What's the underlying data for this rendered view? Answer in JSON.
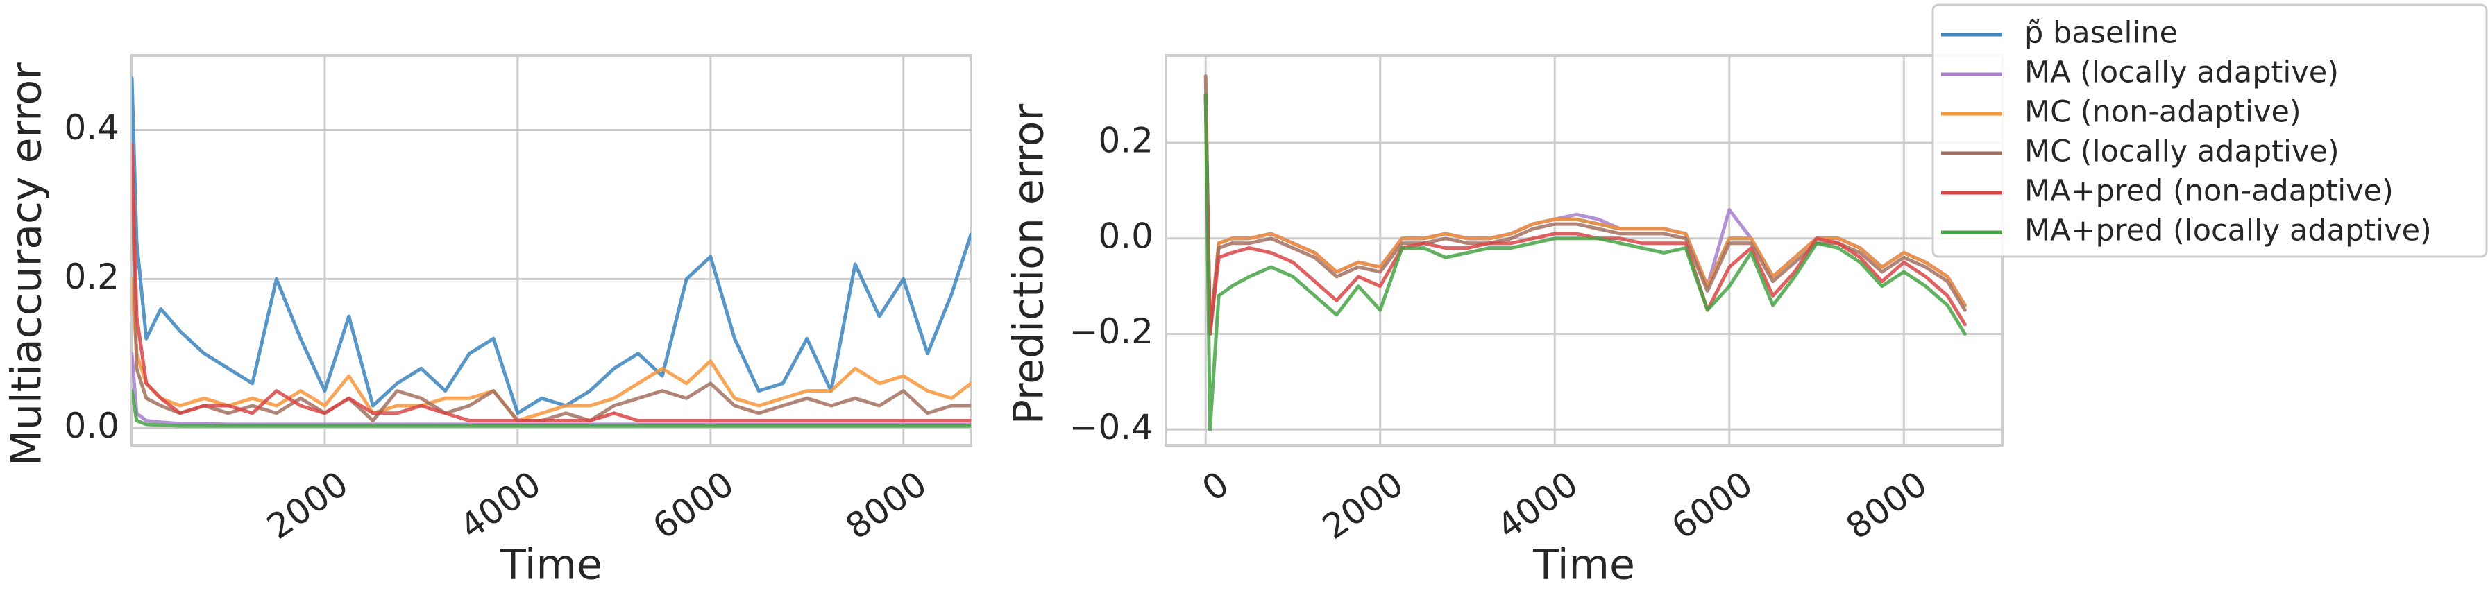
{
  "chart_data": [
    {
      "type": "line",
      "x_label": "Time",
      "y_label": "Multiaccuracy error",
      "x": [
        0,
        50,
        150,
        300,
        500,
        750,
        1000,
        1250,
        1500,
        1750,
        2000,
        2250,
        2500,
        2750,
        3000,
        3250,
        3500,
        3750,
        4000,
        4250,
        4500,
        4750,
        5000,
        5250,
        5500,
        5750,
        6000,
        6250,
        6500,
        6750,
        7000,
        7250,
        7500,
        7750,
        8000,
        8250,
        8500,
        8700
      ],
      "xlim": [
        0,
        8700
      ],
      "xticks": [
        2000,
        4000,
        6000,
        8000
      ],
      "ylim": [
        -0.023,
        0.5
      ],
      "yticks": [
        {
          "value": 0,
          "label": "0.0"
        },
        0.2,
        0.4
      ],
      "grid": true,
      "series": [
        {
          "color": "#3b84be",
          "values": [
            0.47,
            0.25,
            0.12,
            0.16,
            0.13,
            0.1,
            0.08,
            0.06,
            0.2,
            0.12,
            0.05,
            0.15,
            0.03,
            0.06,
            0.08,
            0.05,
            0.1,
            0.12,
            0.02,
            0.04,
            0.03,
            0.05,
            0.08,
            0.1,
            0.07,
            0.2,
            0.23,
            0.12,
            0.05,
            0.06,
            0.12,
            0.05,
            0.22,
            0.15,
            0.2,
            0.1,
            0.18,
            0.26
          ]
        },
        {
          "color": "#a57fce",
          "values": [
            0.1,
            0.02,
            0.01,
            0.008,
            0.006,
            0.006,
            0.005,
            0.005,
            0.005,
            0.005,
            0.005,
            0.005,
            0.005,
            0.005,
            0.005,
            0.005,
            0.005,
            0.005,
            0.005,
            0.005,
            0.005,
            0.005,
            0.005,
            0.005,
            0.005,
            0.005,
            0.005,
            0.005,
            0.005,
            0.005,
            0.005,
            0.005,
            0.005,
            0.005,
            0.005,
            0.005,
            0.005,
            0.005
          ]
        },
        {
          "color": "#f7953a",
          "values": [
            0.2,
            0.1,
            0.06,
            0.04,
            0.03,
            0.04,
            0.03,
            0.04,
            0.03,
            0.05,
            0.03,
            0.07,
            0.02,
            0.03,
            0.03,
            0.04,
            0.04,
            0.05,
            0.01,
            0.02,
            0.03,
            0.03,
            0.04,
            0.06,
            0.08,
            0.06,
            0.09,
            0.04,
            0.03,
            0.04,
            0.05,
            0.05,
            0.08,
            0.06,
            0.07,
            0.05,
            0.04,
            0.06
          ]
        },
        {
          "color": "#a3705f",
          "values": [
            0.35,
            0.08,
            0.04,
            0.03,
            0.02,
            0.03,
            0.02,
            0.03,
            0.02,
            0.04,
            0.02,
            0.04,
            0.01,
            0.05,
            0.04,
            0.02,
            0.03,
            0.05,
            0.01,
            0.01,
            0.02,
            0.01,
            0.03,
            0.04,
            0.05,
            0.04,
            0.06,
            0.03,
            0.02,
            0.03,
            0.04,
            0.03,
            0.04,
            0.03,
            0.05,
            0.02,
            0.03,
            0.03
          ]
        },
        {
          "color": "#d94545",
          "values": [
            0.38,
            0.15,
            0.06,
            0.04,
            0.02,
            0.03,
            0.03,
            0.02,
            0.05,
            0.03,
            0.02,
            0.04,
            0.02,
            0.02,
            0.03,
            0.02,
            0.01,
            0.01,
            0.01,
            0.01,
            0.01,
            0.01,
            0.02,
            0.01,
            0.01,
            0.01,
            0.01,
            0.01,
            0.01,
            0.01,
            0.01,
            0.01,
            0.01,
            0.01,
            0.01,
            0.01,
            0.01,
            0.01
          ]
        },
        {
          "color": "#45a345",
          "values": [
            0.05,
            0.01,
            0.005,
            0.004,
            0.003,
            0.003,
            0.003,
            0.003,
            0.003,
            0.003,
            0.003,
            0.003,
            0.003,
            0.003,
            0.003,
            0.003,
            0.003,
            0.003,
            0.003,
            0.003,
            0.003,
            0.003,
            0.003,
            0.003,
            0.003,
            0.003,
            0.003,
            0.003,
            0.003,
            0.003,
            0.003,
            0.003,
            0.003,
            0.003,
            0.003,
            0.003,
            0.003,
            0.003
          ]
        }
      ]
    },
    {
      "type": "line",
      "x_label": "Time",
      "y_label": "Prediction error",
      "x": [
        0,
        50,
        150,
        300,
        500,
        750,
        1000,
        1250,
        1500,
        1750,
        2000,
        2250,
        2500,
        2750,
        3000,
        3250,
        3500,
        3750,
        4000,
        4250,
        4500,
        4750,
        5000,
        5250,
        5500,
        5750,
        6000,
        6250,
        6500,
        6750,
        7000,
        7250,
        7500,
        7750,
        8000,
        8250,
        8500,
        8700
      ],
      "xlim": [
        -455,
        9127
      ],
      "xticks": [
        0,
        2000,
        4000,
        6000,
        8000
      ],
      "ylim": [
        -0.433,
        0.383
      ],
      "yticks": [
        {
          "value": -0.4,
          "label": "−0.4"
        },
        {
          "value": -0.2,
          "label": "−0.2"
        },
        {
          "value": 0,
          "label": "0.0"
        },
        0.2
      ],
      "grid": true,
      "legend_loc": "upper right",
      "series": [
        {
          "name": "p̃ baseline",
          "color": "#3b84be",
          "values": [
            0.3,
            -0.2,
            -0.01,
            0.0,
            0.0,
            0.01,
            -0.01,
            -0.03,
            -0.07,
            -0.05,
            -0.06,
            0.0,
            0.0,
            0.01,
            0.0,
            0.0,
            0.01,
            0.03,
            0.04,
            0.04,
            0.03,
            0.02,
            0.02,
            0.02,
            0.01,
            -0.1,
            0.0,
            0.0,
            -0.08,
            -0.04,
            0.0,
            0.0,
            -0.02,
            -0.06,
            -0.03,
            -0.05,
            -0.08,
            -0.14
          ]
        },
        {
          "name": "MA (locally adaptive)",
          "color": "#a57fce",
          "values": [
            0.3,
            -0.2,
            -0.01,
            0.0,
            0.0,
            0.01,
            -0.01,
            -0.03,
            -0.07,
            -0.05,
            -0.06,
            0.0,
            0.0,
            0.01,
            0.0,
            0.0,
            0.01,
            0.03,
            0.04,
            0.05,
            0.04,
            0.02,
            0.02,
            0.02,
            0.01,
            -0.1,
            0.06,
            0.0,
            -0.08,
            -0.04,
            0.0,
            0.0,
            -0.02,
            -0.06,
            -0.03,
            -0.05,
            -0.08,
            -0.14
          ]
        },
        {
          "name": "MC (non-adaptive)",
          "color": "#f7953a",
          "values": [
            0.3,
            -0.2,
            -0.01,
            0.0,
            0.0,
            0.01,
            -0.01,
            -0.03,
            -0.07,
            -0.05,
            -0.06,
            0.0,
            0.0,
            0.01,
            0.0,
            0.0,
            0.01,
            0.03,
            0.04,
            0.04,
            0.03,
            0.02,
            0.02,
            0.02,
            0.01,
            -0.1,
            0.0,
            0.0,
            -0.08,
            -0.04,
            0.0,
            0.0,
            -0.02,
            -0.06,
            -0.03,
            -0.05,
            -0.08,
            -0.14
          ]
        },
        {
          "name": "MC (locally adaptive)",
          "color": "#a3705f",
          "values": [
            0.34,
            -0.2,
            -0.02,
            -0.01,
            -0.01,
            0.0,
            -0.02,
            -0.04,
            -0.08,
            -0.06,
            -0.07,
            -0.01,
            -0.01,
            0.0,
            -0.01,
            -0.01,
            0.0,
            0.02,
            0.03,
            0.03,
            0.02,
            0.01,
            0.01,
            0.01,
            0.0,
            -0.11,
            -0.01,
            -0.01,
            -0.09,
            -0.05,
            -0.01,
            -0.01,
            -0.03,
            -0.07,
            -0.04,
            -0.06,
            -0.09,
            -0.15
          ]
        },
        {
          "name": "MA+pred (non-adaptive)",
          "color": "#d94545",
          "values": [
            0.3,
            -0.2,
            -0.04,
            -0.03,
            -0.02,
            -0.03,
            -0.05,
            -0.09,
            -0.13,
            -0.08,
            -0.1,
            -0.02,
            -0.01,
            -0.02,
            -0.02,
            -0.01,
            -0.01,
            0.0,
            0.01,
            0.01,
            0.0,
            0.0,
            -0.01,
            -0.01,
            -0.01,
            -0.15,
            -0.06,
            -0.02,
            -0.12,
            -0.07,
            0.0,
            -0.01,
            -0.04,
            -0.09,
            -0.05,
            -0.08,
            -0.12,
            -0.18
          ]
        },
        {
          "name": "MA+pred (locally adaptive)",
          "color": "#45a345",
          "values": [
            0.3,
            -0.4,
            -0.12,
            -0.1,
            -0.08,
            -0.06,
            -0.08,
            -0.12,
            -0.16,
            -0.1,
            -0.15,
            -0.02,
            -0.02,
            -0.04,
            -0.03,
            -0.02,
            -0.02,
            -0.01,
            0.0,
            0.0,
            0.0,
            -0.01,
            -0.02,
            -0.03,
            -0.02,
            -0.15,
            -0.1,
            -0.03,
            -0.14,
            -0.08,
            -0.01,
            -0.02,
            -0.05,
            -0.1,
            -0.07,
            -0.1,
            -0.14,
            -0.2
          ]
        }
      ]
    }
  ]
}
